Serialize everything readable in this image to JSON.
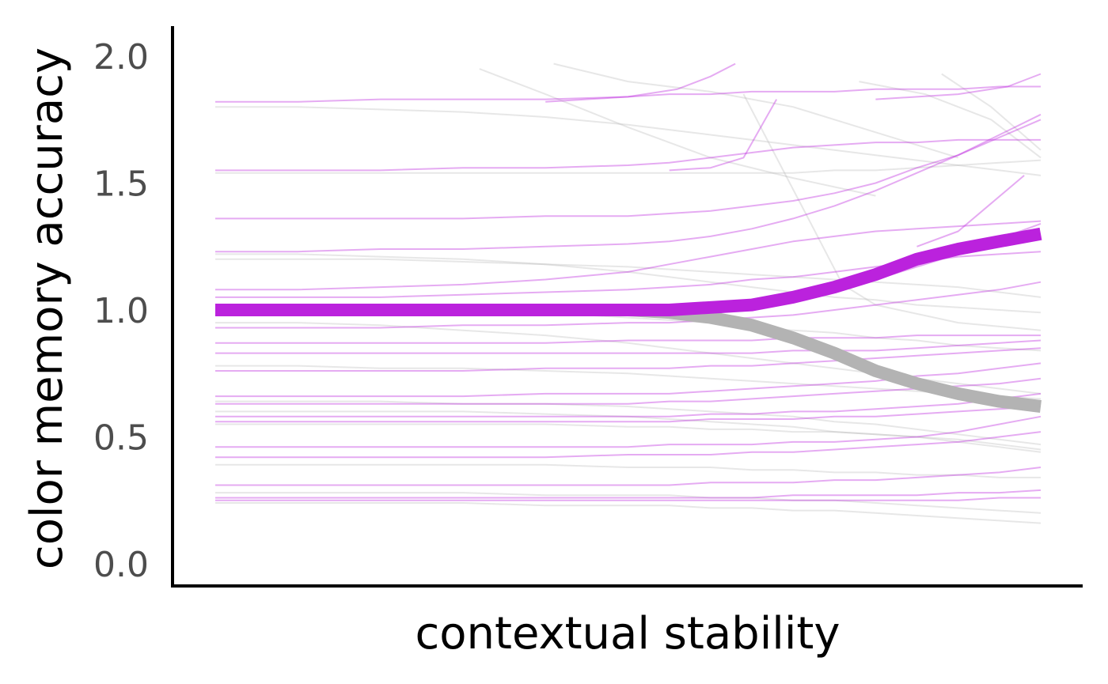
{
  "chart_data": {
    "type": "line",
    "title": "",
    "xlabel": "contextual stability",
    "ylabel": "color memory accuracy",
    "x_ticks_shown": false,
    "x": [
      0,
      0.1,
      0.2,
      0.3,
      0.4,
      0.5,
      0.55,
      0.6,
      0.65,
      0.7,
      0.75,
      0.8,
      0.85,
      0.9,
      0.95,
      1.0
    ],
    "ylim": [
      -0.05,
      2.1
    ],
    "yticks": [
      "0.0",
      "0.5",
      "1.0",
      "1.5",
      "2.0"
    ],
    "ytick_values": [
      0,
      0.5,
      1.0,
      1.5,
      2.0
    ],
    "grid": false,
    "legend": "none",
    "colors": {
      "purple": "#bb22dd",
      "gray": "#b3b3b3"
    },
    "series": [
      {
        "group": "purple",
        "role": "mean",
        "values": [
          1.0,
          1.0,
          1.0,
          1.0,
          1.0,
          1.0,
          1.0,
          1.01,
          1.02,
          1.05,
          1.09,
          1.14,
          1.2,
          1.24,
          1.27,
          1.3
        ]
      },
      {
        "group": "gray",
        "role": "mean",
        "values": [
          1.0,
          1.0,
          1.0,
          1.0,
          1.0,
          1.0,
          0.99,
          0.97,
          0.94,
          0.89,
          0.83,
          0.76,
          0.71,
          0.67,
          0.64,
          0.62
        ]
      }
    ],
    "individual_lines": [
      {
        "group": "purple",
        "values": [
          1.82,
          1.82,
          1.83,
          1.83,
          1.83,
          1.84,
          1.85,
          1.85,
          1.86,
          1.86,
          1.86,
          1.87,
          1.87,
          1.87,
          1.88,
          1.88
        ]
      },
      {
        "group": "purple",
        "values": [
          1.55,
          1.55,
          1.55,
          1.56,
          1.56,
          1.57,
          1.58,
          1.6,
          1.62,
          1.64,
          1.65,
          1.66,
          1.66,
          1.67,
          1.67,
          1.67
        ]
      },
      {
        "group": "purple",
        "values": [
          1.36,
          1.36,
          1.36,
          1.36,
          1.37,
          1.37,
          1.38,
          1.39,
          1.41,
          1.43,
          1.46,
          1.5,
          1.56,
          1.61,
          1.69,
          1.77
        ]
      },
      {
        "group": "purple",
        "values": [
          1.23,
          1.23,
          1.24,
          1.24,
          1.25,
          1.26,
          1.27,
          1.29,
          1.32,
          1.36,
          1.41,
          1.47,
          1.54,
          1.61,
          1.68,
          1.75
        ]
      },
      {
        "group": "purple",
        "values": [
          1.08,
          1.08,
          1.09,
          1.1,
          1.12,
          1.15,
          1.18,
          1.21,
          1.24,
          1.27,
          1.29,
          1.31,
          1.32,
          1.33,
          1.34,
          1.35
        ]
      },
      {
        "group": "purple",
        "values": [
          1.05,
          1.05,
          1.05,
          1.06,
          1.07,
          1.08,
          1.09,
          1.1,
          1.12,
          1.13,
          1.15,
          1.17,
          1.19,
          1.21,
          1.22,
          1.23
        ]
      },
      {
        "group": "purple",
        "values": [
          0.98,
          0.98,
          0.98,
          0.98,
          0.99,
          0.99,
          1.0,
          1.01,
          1.03,
          1.05,
          1.08,
          1.12,
          1.17,
          1.22,
          1.28,
          1.34
        ]
      },
      {
        "group": "purple",
        "values": [
          0.93,
          0.93,
          0.93,
          0.94,
          0.94,
          0.95,
          0.95,
          0.96,
          0.97,
          0.98,
          1.0,
          1.02,
          1.04,
          1.06,
          1.08,
          1.11
        ]
      },
      {
        "group": "purple",
        "values": [
          0.87,
          0.87,
          0.87,
          0.87,
          0.87,
          0.88,
          0.88,
          0.88,
          0.88,
          0.89,
          0.89,
          0.89,
          0.9,
          0.9,
          0.9,
          0.9
        ]
      },
      {
        "group": "purple",
        "values": [
          0.83,
          0.83,
          0.83,
          0.83,
          0.83,
          0.83,
          0.83,
          0.83,
          0.83,
          0.84,
          0.84,
          0.84,
          0.85,
          0.86,
          0.87,
          0.88
        ]
      },
      {
        "group": "purple",
        "values": [
          0.76,
          0.76,
          0.76,
          0.76,
          0.77,
          0.77,
          0.77,
          0.78,
          0.78,
          0.79,
          0.8,
          0.81,
          0.82,
          0.83,
          0.84,
          0.85
        ]
      },
      {
        "group": "purple",
        "values": [
          0.66,
          0.66,
          0.66,
          0.66,
          0.67,
          0.67,
          0.67,
          0.68,
          0.69,
          0.7,
          0.71,
          0.72,
          0.74,
          0.75,
          0.77,
          0.79
        ]
      },
      {
        "group": "purple",
        "values": [
          0.63,
          0.63,
          0.63,
          0.63,
          0.63,
          0.63,
          0.64,
          0.64,
          0.65,
          0.66,
          0.67,
          0.68,
          0.69,
          0.7,
          0.71,
          0.73
        ]
      },
      {
        "group": "purple",
        "values": [
          0.58,
          0.58,
          0.58,
          0.58,
          0.58,
          0.58,
          0.58,
          0.59,
          0.59,
          0.6,
          0.6,
          0.61,
          0.62,
          0.63,
          0.65,
          0.67
        ]
      },
      {
        "group": "purple",
        "values": [
          0.56,
          0.56,
          0.56,
          0.56,
          0.56,
          0.56,
          0.56,
          0.57,
          0.57,
          0.57,
          0.58,
          0.58,
          0.59,
          0.6,
          0.61,
          0.62
        ]
      },
      {
        "group": "purple",
        "values": [
          0.46,
          0.46,
          0.46,
          0.46,
          0.46,
          0.46,
          0.47,
          0.47,
          0.47,
          0.48,
          0.48,
          0.49,
          0.5,
          0.52,
          0.55,
          0.58
        ]
      },
      {
        "group": "purple",
        "values": [
          0.42,
          0.42,
          0.42,
          0.42,
          0.42,
          0.43,
          0.43,
          0.43,
          0.44,
          0.44,
          0.45,
          0.46,
          0.47,
          0.48,
          0.5,
          0.52
        ]
      },
      {
        "group": "purple",
        "values": [
          0.31,
          0.31,
          0.31,
          0.31,
          0.31,
          0.31,
          0.31,
          0.32,
          0.32,
          0.32,
          0.33,
          0.33,
          0.34,
          0.35,
          0.36,
          0.38
        ]
      },
      {
        "group": "purple",
        "values": [
          0.26,
          0.26,
          0.26,
          0.26,
          0.26,
          0.26,
          0.26,
          0.26,
          0.26,
          0.27,
          0.27,
          0.27,
          0.27,
          0.28,
          0.28,
          0.29
        ]
      },
      {
        "group": "purple",
        "values": [
          0.25,
          0.25,
          0.25,
          0.25,
          0.25,
          0.25,
          0.25,
          0.25,
          0.25,
          0.25,
          0.25,
          0.25,
          0.25,
          0.25,
          0.26,
          0.26
        ]
      },
      {
        "group": "gray",
        "values": [
          1.8,
          1.8,
          1.79,
          1.78,
          1.76,
          1.73,
          1.71,
          1.69,
          1.67,
          1.65,
          1.63,
          1.61,
          1.59,
          1.57,
          1.55,
          1.53
        ]
      },
      {
        "group": "gray",
        "values": [
          1.54,
          1.54,
          1.54,
          1.54,
          1.54,
          1.54,
          1.54,
          1.54,
          1.54,
          1.54,
          1.55,
          1.55,
          1.56,
          1.57,
          1.58,
          1.59
        ]
      },
      {
        "group": "gray",
        "values": [
          1.2,
          1.2,
          1.2,
          1.19,
          1.18,
          1.17,
          1.16,
          1.15,
          1.14,
          1.13,
          1.12,
          1.11,
          1.1,
          1.09,
          1.07,
          1.05
        ]
      },
      {
        "group": "gray",
        "values": [
          1.22,
          1.22,
          1.21,
          1.2,
          1.18,
          1.15,
          1.13,
          1.11,
          1.09,
          1.07,
          1.05,
          1.04,
          1.02,
          1.01,
          1.0,
          0.99
        ]
      },
      {
        "group": "gray",
        "values": [
          1.02,
          1.02,
          1.01,
          1.0,
          0.99,
          0.97,
          0.96,
          0.95,
          0.93,
          0.92,
          0.91,
          0.89,
          0.88,
          0.86,
          0.85,
          0.84
        ]
      },
      {
        "group": "gray",
        "values": [
          0.95,
          0.95,
          0.94,
          0.92,
          0.9,
          0.87,
          0.85,
          0.83,
          0.81,
          0.79,
          0.77,
          0.75,
          0.73,
          0.71,
          0.69,
          0.67
        ]
      },
      {
        "group": "gray",
        "values": [
          0.78,
          0.78,
          0.77,
          0.77,
          0.76,
          0.75,
          0.74,
          0.73,
          0.72,
          0.71,
          0.7,
          0.69,
          0.68,
          0.67,
          0.66,
          0.65
        ]
      },
      {
        "group": "gray",
        "values": [
          0.64,
          0.64,
          0.64,
          0.63,
          0.63,
          0.62,
          0.61,
          0.6,
          0.59,
          0.58,
          0.56,
          0.55,
          0.53,
          0.51,
          0.49,
          0.47
        ]
      },
      {
        "group": "gray",
        "values": [
          0.6,
          0.6,
          0.6,
          0.6,
          0.59,
          0.58,
          0.57,
          0.56,
          0.55,
          0.54,
          0.52,
          0.51,
          0.5,
          0.48,
          0.46,
          0.44
        ]
      },
      {
        "group": "gray",
        "values": [
          0.55,
          0.55,
          0.55,
          0.55,
          0.55,
          0.54,
          0.54,
          0.53,
          0.53,
          0.52,
          0.52,
          0.51,
          0.5,
          0.49,
          0.47,
          0.45
        ]
      },
      {
        "group": "gray",
        "values": [
          0.39,
          0.39,
          0.39,
          0.39,
          0.39,
          0.38,
          0.38,
          0.38,
          0.37,
          0.37,
          0.36,
          0.36,
          0.35,
          0.35,
          0.34,
          0.34
        ]
      },
      {
        "group": "gray",
        "values": [
          0.28,
          0.28,
          0.28,
          0.28,
          0.27,
          0.27,
          0.27,
          0.26,
          0.26,
          0.25,
          0.25,
          0.24,
          0.23,
          0.22,
          0.21,
          0.2
        ]
      },
      {
        "group": "gray",
        "values": [
          0.24,
          0.24,
          0.24,
          0.24,
          0.23,
          0.23,
          0.23,
          0.22,
          0.22,
          0.21,
          0.21,
          0.2,
          0.19,
          0.18,
          0.17,
          0.16
        ]
      }
    ],
    "extra_segments": [
      {
        "group": "gray",
        "points": [
          [
            0.32,
            1.95
          ],
          [
            0.4,
            1.85
          ],
          [
            0.5,
            1.72
          ],
          [
            0.6,
            1.6
          ],
          [
            0.7,
            1.52
          ],
          [
            0.8,
            1.45
          ]
        ]
      },
      {
        "group": "gray",
        "points": [
          [
            0.41,
            1.97
          ],
          [
            0.5,
            1.9
          ],
          [
            0.6,
            1.86
          ],
          [
            0.7,
            1.8
          ],
          [
            0.8,
            1.7
          ],
          [
            0.9,
            1.6
          ]
        ]
      },
      {
        "group": "gray",
        "points": [
          [
            0.64,
            1.85
          ],
          [
            0.68,
            1.6
          ],
          [
            0.72,
            1.35
          ],
          [
            0.76,
            1.1
          ],
          [
            0.8,
            1.02
          ],
          [
            0.9,
            0.95
          ],
          [
            1.0,
            0.92
          ]
        ]
      },
      {
        "group": "gray",
        "points": [
          [
            0.78,
            1.9
          ],
          [
            0.86,
            1.85
          ],
          [
            0.94,
            1.75
          ],
          [
            1.0,
            1.6
          ]
        ]
      },
      {
        "group": "gray",
        "points": [
          [
            0.88,
            1.93
          ],
          [
            0.94,
            1.8
          ],
          [
            1.0,
            1.63
          ]
        ]
      },
      {
        "group": "purple",
        "points": [
          [
            0.4,
            1.82
          ],
          [
            0.5,
            1.84
          ],
          [
            0.56,
            1.87
          ],
          [
            0.6,
            1.92
          ],
          [
            0.63,
            1.97
          ]
        ]
      },
      {
        "group": "purple",
        "points": [
          [
            0.55,
            1.55
          ],
          [
            0.6,
            1.56
          ],
          [
            0.64,
            1.6
          ],
          [
            0.68,
            1.83
          ]
        ]
      },
      {
        "group": "purple",
        "points": [
          [
            0.8,
            1.83
          ],
          [
            0.9,
            1.85
          ],
          [
            0.96,
            1.88
          ],
          [
            1.0,
            1.93
          ]
        ]
      },
      {
        "group": "purple",
        "points": [
          [
            0.85,
            1.25
          ],
          [
            0.9,
            1.31
          ],
          [
            0.94,
            1.42
          ],
          [
            0.98,
            1.53
          ]
        ]
      }
    ]
  }
}
